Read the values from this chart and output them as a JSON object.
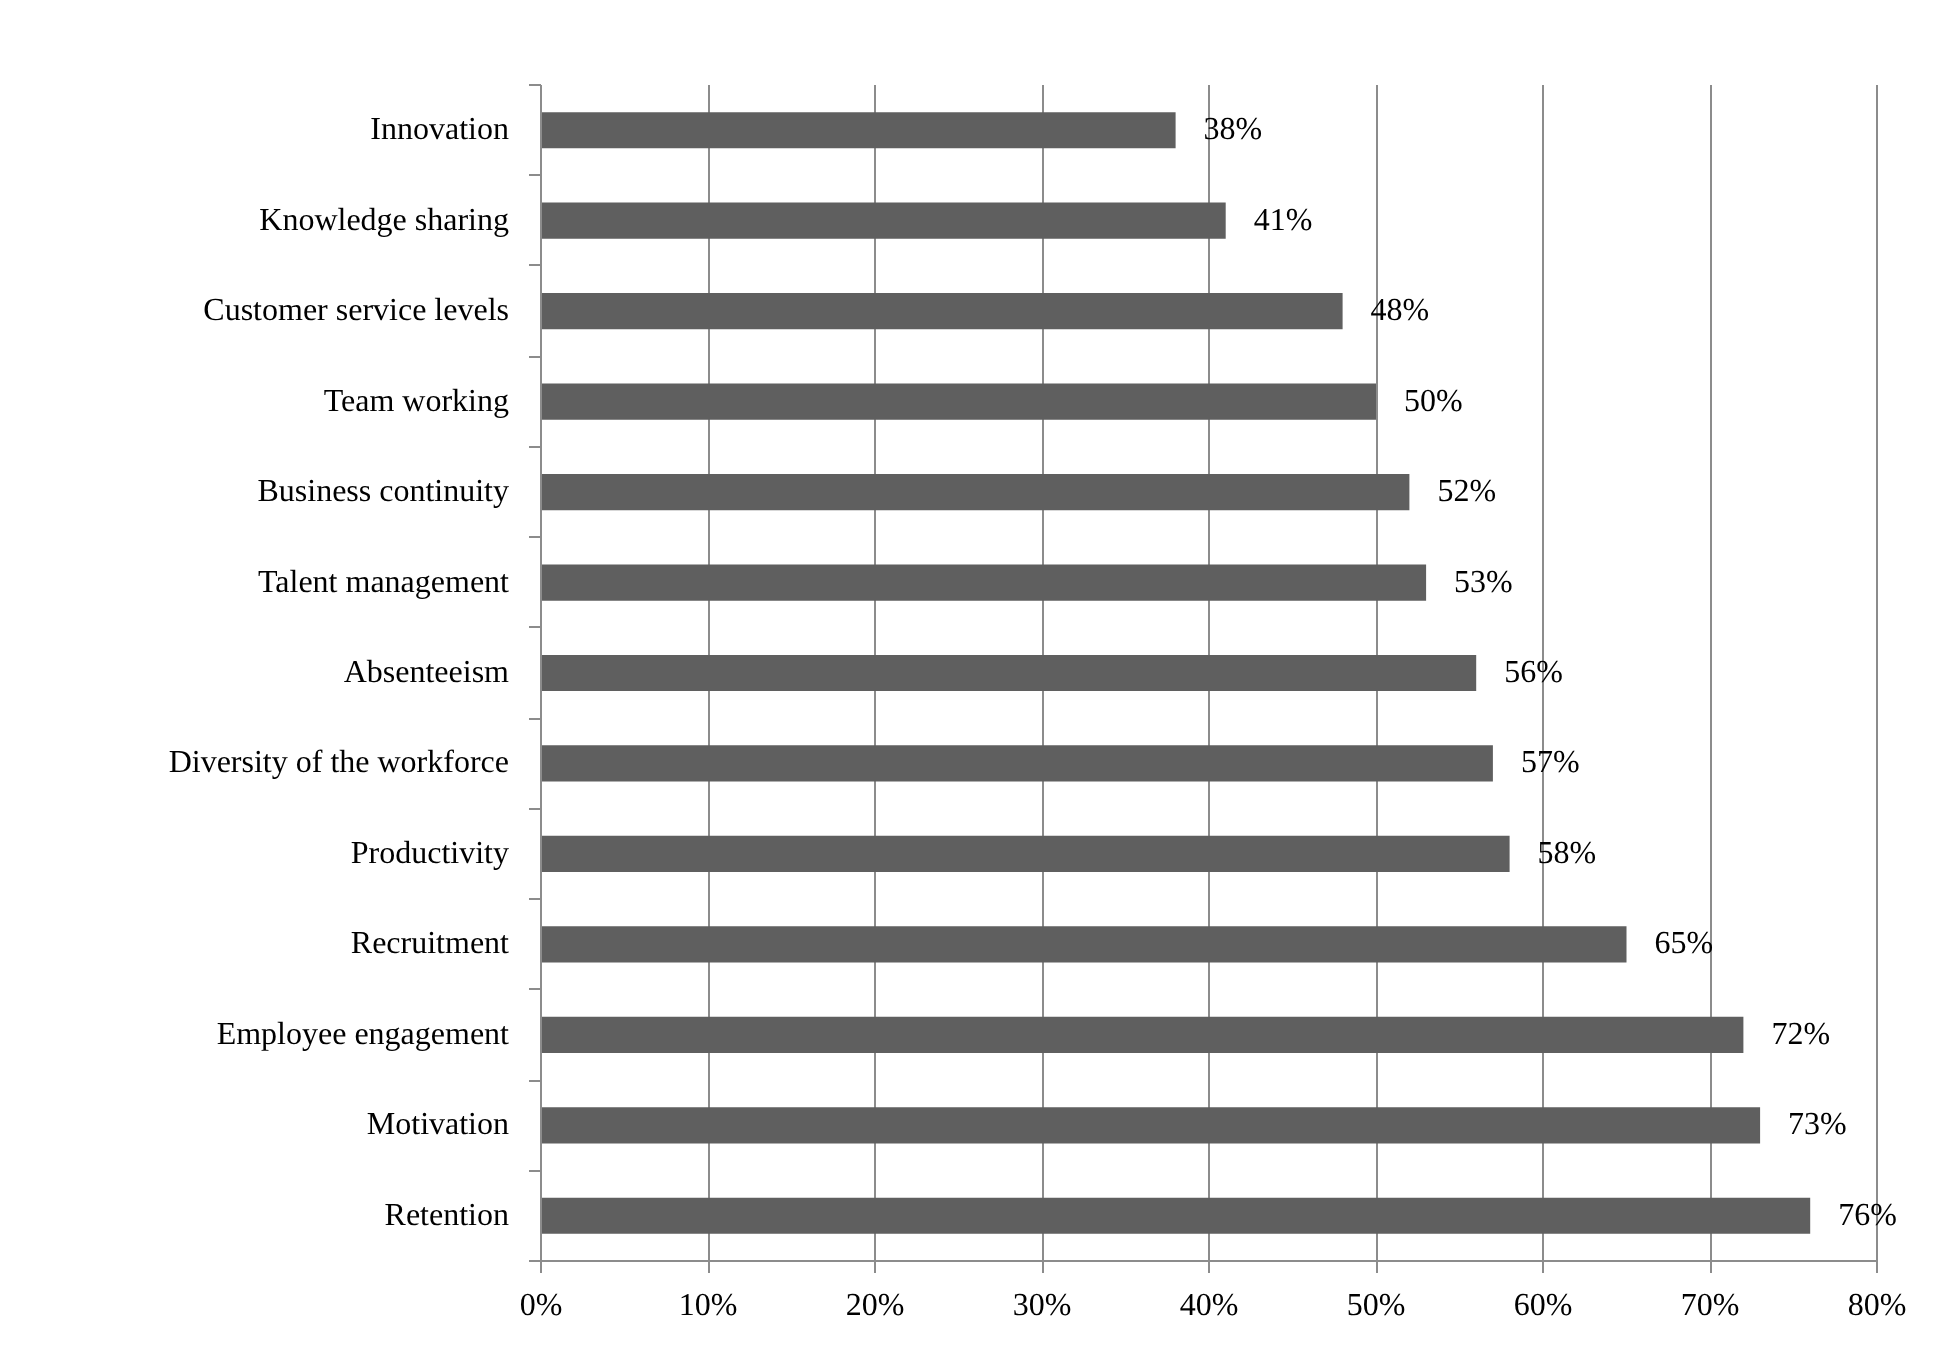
{
  "chart_data": {
    "type": "bar",
    "orientation": "horizontal",
    "categories": [
      "Innovation",
      "Knowledge sharing",
      "Customer service levels",
      "Team working",
      "Business continuity",
      "Talent management",
      "Absenteeism",
      "Diversity of the workforce",
      "Productivity",
      "Recruitment",
      "Employee engagement",
      "Motivation",
      "Retention"
    ],
    "values": [
      38,
      41,
      48,
      50,
      52,
      53,
      56,
      57,
      58,
      65,
      72,
      73,
      76
    ],
    "value_labels": [
      "38%",
      "41%",
      "48%",
      "50%",
      "52%",
      "53%",
      "56%",
      "57%",
      "58%",
      "65%",
      "72%",
      "73%",
      "76%"
    ],
    "color": "#5f5f5f",
    "xlim": [
      0,
      80
    ],
    "xticks": [
      {
        "value": 0,
        "label": "0%"
      },
      {
        "value": 10,
        "label": "10%"
      },
      {
        "value": 20,
        "label": "20%"
      },
      {
        "value": 30,
        "label": "30%"
      },
      {
        "value": 40,
        "label": "40%"
      },
      {
        "value": 50,
        "label": "50%"
      },
      {
        "value": 60,
        "label": "60%"
      },
      {
        "value": 70,
        "label": "70%"
      },
      {
        "value": 80,
        "label": "80%"
      }
    ],
    "grid": "x"
  }
}
